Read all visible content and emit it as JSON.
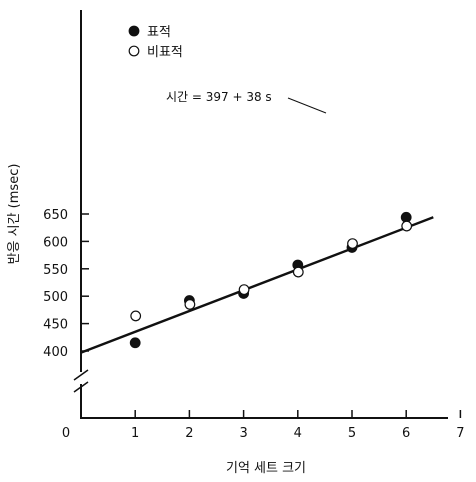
{
  "chart_data": {
    "type": "scatter",
    "xlabel": "기억 세트 크기",
    "ylabel": "반응 시간 (msec)",
    "xlim": [
      0,
      7
    ],
    "ylim": [
      400,
      650
    ],
    "x_ticks": [
      1,
      2,
      3,
      4,
      5,
      6,
      7
    ],
    "y_ticks": [
      400,
      450,
      500,
      550,
      600,
      650
    ],
    "origin_label": "0",
    "axis_break": "y",
    "legend_position": "top-left",
    "series": [
      {
        "name": "표적",
        "marker": "filled-circle",
        "x": [
          1,
          2,
          3,
          4,
          5,
          6
        ],
        "y": [
          415,
          492,
          505,
          557,
          589,
          644
        ]
      },
      {
        "name": "비표적",
        "marker": "open-circle",
        "x": [
          1,
          2,
          3,
          4,
          5,
          6
        ],
        "y": [
          464,
          485,
          512,
          544,
          596,
          628
        ]
      }
    ],
    "fit_line": {
      "intercept": 397,
      "slope": 38
    },
    "annotation": "시간 = 397 + 38 s",
    "colors": {
      "ink": "#111111",
      "background": "#ffffff"
    }
  }
}
